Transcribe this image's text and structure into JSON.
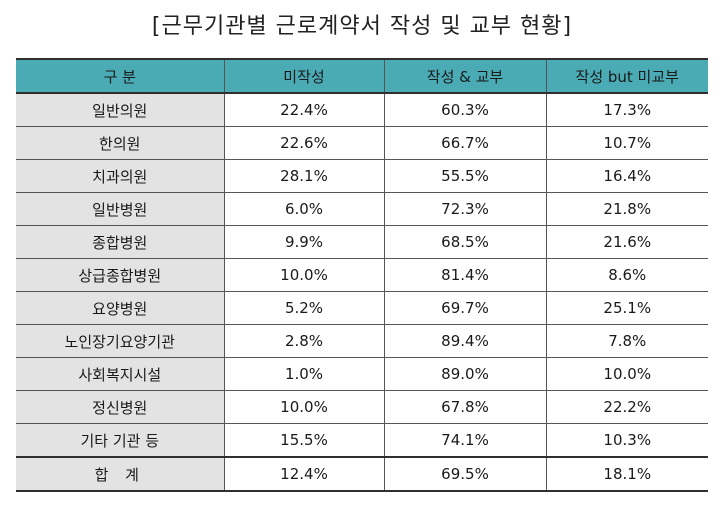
{
  "title": "[근무기관별 근로계약서 작성 및 교부 현황]",
  "table": {
    "headers": [
      "구 분",
      "미작성",
      "작성 & 교부",
      "작성 but 미교부"
    ],
    "rows": [
      [
        "일반의원",
        "22.4%",
        "60.3%",
        "17.3%"
      ],
      [
        "한의원",
        "22.6%",
        "66.7%",
        "10.7%"
      ],
      [
        "치과의원",
        "28.1%",
        "55.5%",
        "16.4%"
      ],
      [
        "일반병원",
        "6.0%",
        "72.3%",
        "21.8%"
      ],
      [
        "종합병원",
        "9.9%",
        "68.5%",
        "21.6%"
      ],
      [
        "상급종합병원",
        "10.0%",
        "81.4%",
        "8.6%"
      ],
      [
        "요양병원",
        "5.2%",
        "69.7%",
        "25.1%"
      ],
      [
        "노인장기요양기관",
        "2.8%",
        "89.4%",
        "7.8%"
      ],
      [
        "사회복지시설",
        "1.0%",
        "89.0%",
        "10.0%"
      ],
      [
        "정신병원",
        "10.0%",
        "67.8%",
        "22.2%"
      ],
      [
        "기타 기관 등",
        "15.5%",
        "74.1%",
        "10.3%"
      ]
    ],
    "total": [
      "합 계",
      "12.4%",
      "69.5%",
      "18.1%"
    ]
  },
  "colors": {
    "header_bg": "#4aabb5",
    "label_bg": "#e3e3e3"
  }
}
